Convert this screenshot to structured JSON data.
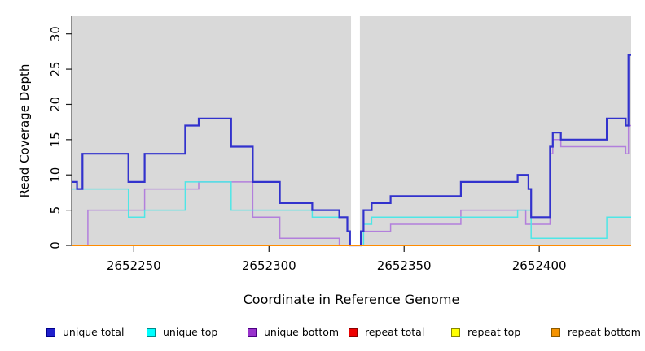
{
  "chart_data": {
    "type": "line",
    "subtype": "step-after",
    "title": "",
    "xlabel": "Coordinate in Reference Genome",
    "ylabel": "Read Coverage Depth",
    "xlim": [
      2652227,
      2652434
    ],
    "ylim": [
      0,
      32.5
    ],
    "xticks": [
      2652250,
      2652300,
      2652350,
      2652400
    ],
    "xtick_labels": [
      "2652250",
      "2652300",
      "2652350",
      "2652400"
    ],
    "yticks": [
      0,
      5,
      10,
      15,
      20,
      25,
      30
    ],
    "ytick_labels": [
      "0",
      "5",
      "10",
      "15",
      "20",
      "25",
      "30"
    ],
    "panel_bg": "#d9d9d9",
    "outer_bg": "#ffffff",
    "grid": "off",
    "legend_position": "bottom",
    "gap_region": {
      "x0": 2652330,
      "x1": 2652334,
      "color": "#ffffff"
    },
    "series": [
      {
        "name": "repeat total",
        "color": "#dc1414",
        "width": 1.4,
        "points": [
          [
            2652227,
            0
          ],
          [
            2652434,
            0
          ]
        ]
      },
      {
        "name": "repeat top",
        "color": "#ffff00",
        "width": 1.4,
        "points": [
          [
            2652227,
            0
          ],
          [
            2652434,
            0
          ]
        ]
      },
      {
        "name": "repeat bottom",
        "color": "#ff8c00",
        "width": 2,
        "redraw_over_gap": true,
        "points": [
          [
            2652227,
            0
          ],
          [
            2652434,
            0
          ]
        ]
      },
      {
        "name": "unique bottom",
        "color": "#b27fdc",
        "width": 1.5,
        "points": [
          [
            2652227,
            0
          ],
          [
            2652233,
            5
          ],
          [
            2652254,
            8
          ],
          [
            2652274,
            9
          ],
          [
            2652294,
            4
          ],
          [
            2652304,
            1
          ],
          [
            2652326,
            0
          ],
          [
            2652334,
            2
          ],
          [
            2652345,
            3
          ],
          [
            2652371,
            5
          ],
          [
            2652395,
            3
          ],
          [
            2652404,
            13
          ],
          [
            2652405,
            15
          ],
          [
            2652408,
            14
          ],
          [
            2652432,
            13
          ],
          [
            2652433,
            17
          ],
          [
            2652434,
            17
          ]
        ]
      },
      {
        "name": "unique top",
        "color": "#4ee6e6",
        "width": 1.5,
        "points": [
          [
            2652227,
            8
          ],
          [
            2652248,
            4
          ],
          [
            2652254,
            5
          ],
          [
            2652269,
            9
          ],
          [
            2652286,
            5
          ],
          [
            2652316,
            4
          ],
          [
            2652329,
            2
          ],
          [
            2652330,
            0
          ],
          [
            2652335,
            3
          ],
          [
            2652338,
            4
          ],
          [
            2652392,
            5
          ],
          [
            2652397,
            1
          ],
          [
            2652425,
            4
          ],
          [
            2652434,
            4
          ]
        ]
      },
      {
        "name": "unique total",
        "color": "#3232cd",
        "width": 2.2,
        "points": [
          [
            2652227,
            9
          ],
          [
            2652229,
            8
          ],
          [
            2652231,
            13
          ],
          [
            2652248,
            9
          ],
          [
            2652254,
            13
          ],
          [
            2652269,
            17
          ],
          [
            2652274,
            18
          ],
          [
            2652286,
            14
          ],
          [
            2652294,
            9
          ],
          [
            2652304,
            6
          ],
          [
            2652316,
            5
          ],
          [
            2652326,
            4
          ],
          [
            2652329,
            2
          ],
          [
            2652330,
            0
          ],
          [
            2652334,
            2
          ],
          [
            2652335,
            5
          ],
          [
            2652338,
            6
          ],
          [
            2652345,
            7
          ],
          [
            2652371,
            9
          ],
          [
            2652392,
            10
          ],
          [
            2652396,
            8
          ],
          [
            2652397,
            4
          ],
          [
            2652404,
            14
          ],
          [
            2652405,
            16
          ],
          [
            2652408,
            15
          ],
          [
            2652425,
            18
          ],
          [
            2652432,
            17
          ],
          [
            2652433,
            27
          ],
          [
            2652434,
            27
          ]
        ]
      }
    ],
    "legend": [
      {
        "label": "unique total",
        "fill": "#1f1fcc",
        "border": "#00008b"
      },
      {
        "label": "unique top",
        "fill": "#00ffff",
        "border": "#008b8b"
      },
      {
        "label": "unique bottom",
        "fill": "#9932cc",
        "border": "#4b0082"
      },
      {
        "label": "repeat total",
        "fill": "#ee0000",
        "border": "#8b0000"
      },
      {
        "label": "repeat top",
        "fill": "#ffff00",
        "border": "#878700"
      },
      {
        "label": "repeat bottom",
        "fill": "#f59300",
        "border": "#8b5a00"
      }
    ]
  }
}
